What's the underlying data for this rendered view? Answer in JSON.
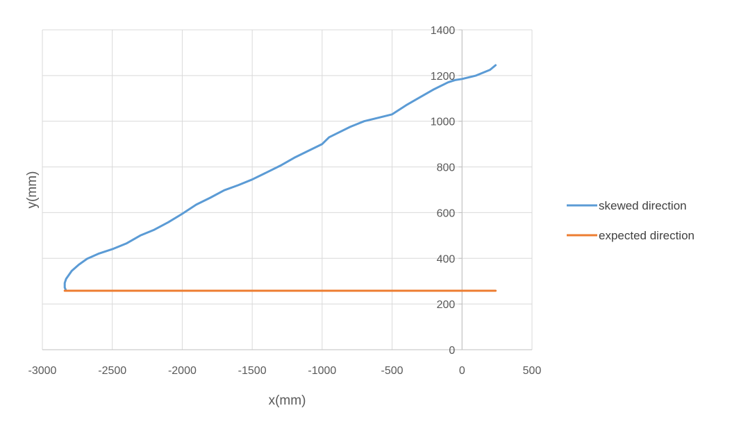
{
  "chart_data": {
    "type": "scatter",
    "title": "",
    "xlabel": "x(mm)",
    "ylabel": "y(mm)",
    "xlim": [
      -3000,
      500
    ],
    "ylim": [
      0,
      1400
    ],
    "xticks": [
      -3000,
      -2500,
      -2000,
      -1500,
      -1000,
      -500,
      0,
      500
    ],
    "yticks": [
      0,
      200,
      400,
      600,
      800,
      1000,
      1200,
      1400
    ],
    "xtick_labels": [
      "-3000",
      "-2500",
      "-2000",
      "-1500",
      "-1000",
      "-500",
      "0",
      "500"
    ],
    "ytick_labels": [
      "0",
      "200",
      "400",
      "600",
      "800",
      "1000",
      "1200",
      "1400"
    ],
    "grid": true,
    "legend_position": "right",
    "series": [
      {
        "name": "skewed direction",
        "color": "#5B9BD5",
        "x": [
          -2830,
          -2840,
          -2840,
          -2830,
          -2790,
          -2740,
          -2680,
          -2600,
          -2500,
          -2400,
          -2300,
          -2200,
          -2100,
          -2000,
          -1900,
          -1800,
          -1700,
          -1600,
          -1500,
          -1400,
          -1300,
          -1200,
          -1100,
          -1000,
          -950,
          -900,
          -800,
          -700,
          -600,
          -500,
          -400,
          -300,
          -200,
          -100,
          -50,
          0,
          100,
          200,
          240
        ],
        "y": [
          258,
          272,
          292,
          310,
          345,
          372,
          398,
          420,
          440,
          465,
          500,
          525,
          558,
          595,
          635,
          665,
          698,
          720,
          745,
          775,
          805,
          840,
          870,
          900,
          930,
          945,
          975,
          1000,
          1015,
          1030,
          1070,
          1105,
          1140,
          1170,
          1180,
          1185,
          1200,
          1225,
          1245
        ]
      },
      {
        "name": "expected direction",
        "color": "#ED7D31",
        "x": [
          -2840,
          240
        ],
        "y": [
          258,
          258
        ]
      }
    ]
  }
}
